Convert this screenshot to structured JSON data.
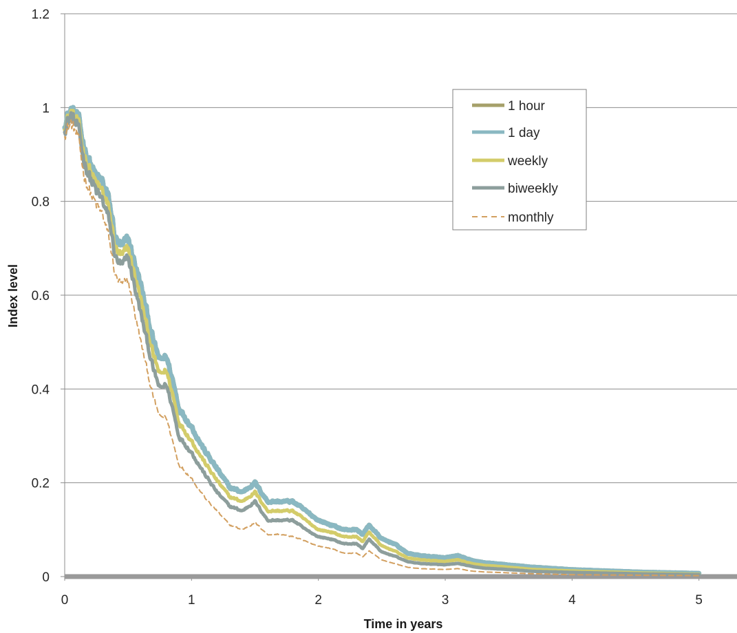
{
  "chart_data": {
    "type": "line",
    "title": "",
    "xlabel": "Time in years",
    "ylabel": "Index level",
    "xlim": [
      0,
      5.3
    ],
    "ylim": [
      0,
      1.2
    ],
    "x_ticks": [
      0,
      1,
      2,
      3,
      4,
      5
    ],
    "y_ticks": [
      0,
      0.2,
      0.4,
      0.6,
      0.8,
      1,
      1.2
    ],
    "x_tick_labels": [
      "0",
      "1",
      "2",
      "3",
      "4",
      "5"
    ],
    "y_tick_labels": [
      "0",
      "0.2",
      "0.4",
      "0.6",
      "0.8",
      "1",
      "1.2"
    ],
    "grid": "horizontal",
    "legend_position": "top-right",
    "x": [
      0,
      0.05,
      0.1,
      0.15,
      0.2,
      0.25,
      0.3,
      0.35,
      0.4,
      0.45,
      0.5,
      0.6,
      0.7,
      0.75,
      0.8,
      0.85,
      0.9,
      1,
      1.1,
      1.2,
      1.3,
      1.4,
      1.5,
      1.6,
      1.7,
      1.8,
      1.9,
      2,
      2.1,
      2.2,
      2.3,
      2.35,
      2.4,
      2.5,
      2.6,
      2.7,
      2.8,
      3,
      3.1,
      3.2,
      3.3,
      3.5,
      3.7,
      4,
      4.5,
      5
    ],
    "series": [
      {
        "name": "1 hour",
        "color": "#a6a06a",
        "dash": "solid",
        "values": [
          0.97,
          0.99,
          0.98,
          0.92,
          0.88,
          0.85,
          0.84,
          0.8,
          0.72,
          0.7,
          0.72,
          0.62,
          0.5,
          0.46,
          0.47,
          0.42,
          0.36,
          0.32,
          0.27,
          0.23,
          0.19,
          0.18,
          0.2,
          0.16,
          0.16,
          0.16,
          0.14,
          0.12,
          0.11,
          0.1,
          0.1,
          0.09,
          0.11,
          0.08,
          0.07,
          0.05,
          0.045,
          0.04,
          0.045,
          0.035,
          0.03,
          0.025,
          0.02,
          0.015,
          0.01,
          0.007
        ]
      },
      {
        "name": "1 day",
        "color": "#8ab8c2",
        "dash": "solid",
        "values": [
          0.97,
          0.99,
          0.98,
          0.92,
          0.88,
          0.85,
          0.84,
          0.8,
          0.72,
          0.7,
          0.72,
          0.62,
          0.5,
          0.46,
          0.47,
          0.42,
          0.36,
          0.32,
          0.27,
          0.23,
          0.19,
          0.18,
          0.2,
          0.16,
          0.16,
          0.16,
          0.14,
          0.12,
          0.11,
          0.1,
          0.1,
          0.09,
          0.11,
          0.08,
          0.07,
          0.05,
          0.045,
          0.04,
          0.045,
          0.035,
          0.03,
          0.025,
          0.02,
          0.015,
          0.01,
          0.007
        ]
      },
      {
        "name": "weekly",
        "color": "#d3cc6a",
        "dash": "solid",
        "values": [
          0.965,
          0.985,
          0.97,
          0.905,
          0.865,
          0.835,
          0.82,
          0.78,
          0.7,
          0.68,
          0.7,
          0.59,
          0.47,
          0.43,
          0.44,
          0.39,
          0.33,
          0.29,
          0.245,
          0.205,
          0.17,
          0.16,
          0.18,
          0.14,
          0.14,
          0.14,
          0.12,
          0.1,
          0.095,
          0.085,
          0.085,
          0.075,
          0.095,
          0.065,
          0.055,
          0.04,
          0.036,
          0.032,
          0.036,
          0.028,
          0.024,
          0.02,
          0.015,
          0.012,
          0.008,
          0.005
        ]
      },
      {
        "name": "biweekly",
        "color": "#8d9e9c",
        "dash": "solid",
        "values": [
          0.96,
          0.98,
          0.96,
          0.89,
          0.85,
          0.82,
          0.8,
          0.76,
          0.68,
          0.66,
          0.68,
          0.56,
          0.44,
          0.4,
          0.41,
          0.36,
          0.3,
          0.265,
          0.22,
          0.18,
          0.15,
          0.14,
          0.16,
          0.12,
          0.12,
          0.12,
          0.1,
          0.085,
          0.08,
          0.07,
          0.07,
          0.06,
          0.08,
          0.052,
          0.044,
          0.032,
          0.028,
          0.025,
          0.028,
          0.022,
          0.018,
          0.015,
          0.011,
          0.009,
          0.006,
          0.004
        ]
      },
      {
        "name": "monthly",
        "color": "#d29f5f",
        "dash": "dashed",
        "values": [
          0.95,
          0.965,
          0.94,
          0.86,
          0.82,
          0.79,
          0.77,
          0.72,
          0.64,
          0.62,
          0.63,
          0.5,
          0.38,
          0.34,
          0.34,
          0.29,
          0.24,
          0.21,
          0.17,
          0.14,
          0.11,
          0.1,
          0.115,
          0.09,
          0.09,
          0.085,
          0.075,
          0.065,
          0.06,
          0.05,
          0.05,
          0.042,
          0.055,
          0.035,
          0.028,
          0.02,
          0.017,
          0.015,
          0.017,
          0.012,
          0.01,
          0.008,
          0.006,
          0.004,
          0.003,
          0.002
        ]
      }
    ]
  }
}
